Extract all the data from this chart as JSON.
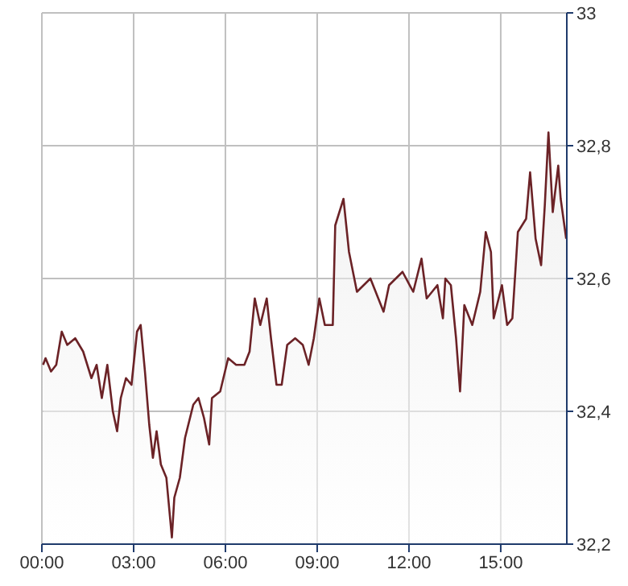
{
  "chart_data": {
    "type": "area",
    "x": [
      0.04,
      0.12,
      0.3,
      0.47,
      0.65,
      0.83,
      1.09,
      1.35,
      1.62,
      1.79,
      1.96,
      2.14,
      2.32,
      2.46,
      2.58,
      2.75,
      2.93,
      3.11,
      3.23,
      3.37,
      3.51,
      3.63,
      3.75,
      3.89,
      4.07,
      4.25,
      4.33,
      4.51,
      4.68,
      4.95,
      5.12,
      5.3,
      5.47,
      5.56,
      5.83,
      6.09,
      6.35,
      6.62,
      6.79,
      6.96,
      7.14,
      7.35,
      7.49,
      7.67,
      7.84,
      8.02,
      8.28,
      8.53,
      8.72,
      8.89,
      9.07,
      9.25,
      9.51,
      9.59,
      9.86,
      10.04,
      10.3,
      10.74,
      11.17,
      11.35,
      11.79,
      12.14,
      12.41,
      12.58,
      12.93,
      13.11,
      13.19,
      13.37,
      13.54,
      13.67,
      13.81,
      14.07,
      14.33,
      14.51,
      14.68,
      14.77,
      15.04,
      15.21,
      15.38,
      15.56,
      15.83,
      15.96,
      16.14,
      16.32,
      16.44,
      16.56,
      16.7,
      16.88,
      16.96,
      17.05,
      17.14
    ],
    "series": [
      {
        "color": "#6b2226",
        "values": [
          32.47,
          32.48,
          32.46,
          32.47,
          32.52,
          32.5,
          32.51,
          32.49,
          32.45,
          32.47,
          32.42,
          32.47,
          32.4,
          32.37,
          32.42,
          32.45,
          32.44,
          32.52,
          32.53,
          32.46,
          32.38,
          32.33,
          32.37,
          32.32,
          32.3,
          32.21,
          32.27,
          32.3,
          32.36,
          32.41,
          32.42,
          32.39,
          32.35,
          32.42,
          32.43,
          32.48,
          32.47,
          32.47,
          32.49,
          32.57,
          32.53,
          32.57,
          32.51,
          32.44,
          32.44,
          32.5,
          32.51,
          32.5,
          32.47,
          32.51,
          32.57,
          32.53,
          32.53,
          32.68,
          32.72,
          32.64,
          32.58,
          32.6,
          32.55,
          32.59,
          32.61,
          32.58,
          32.63,
          32.57,
          32.59,
          32.54,
          32.6,
          32.59,
          32.51,
          32.43,
          32.56,
          32.53,
          32.58,
          32.67,
          32.64,
          32.54,
          32.59,
          32.53,
          32.54,
          32.67,
          32.69,
          32.76,
          32.66,
          32.62,
          32.71,
          32.82,
          32.7,
          32.77,
          32.72,
          32.69,
          32.66
        ]
      }
    ],
    "xlim": [
      0,
      17.16
    ],
    "xticks": [
      {
        "value": 0,
        "label": "00:00"
      },
      {
        "value": 3,
        "label": "03:00"
      },
      {
        "value": 6,
        "label": "06:00"
      },
      {
        "value": 9,
        "label": "09:00"
      },
      {
        "value": 12,
        "label": "12:00"
      },
      {
        "value": 15,
        "label": "15:00"
      }
    ],
    "ylim": [
      32.2,
      33
    ],
    "yticks": [
      {
        "value": 32.2,
        "label": "32,2"
      },
      {
        "value": 32.4,
        "label": "32,4"
      },
      {
        "value": 32.6,
        "label": "32,6"
      },
      {
        "value": 32.8,
        "label": "32,8"
      },
      33
    ],
    "grid": true
  }
}
